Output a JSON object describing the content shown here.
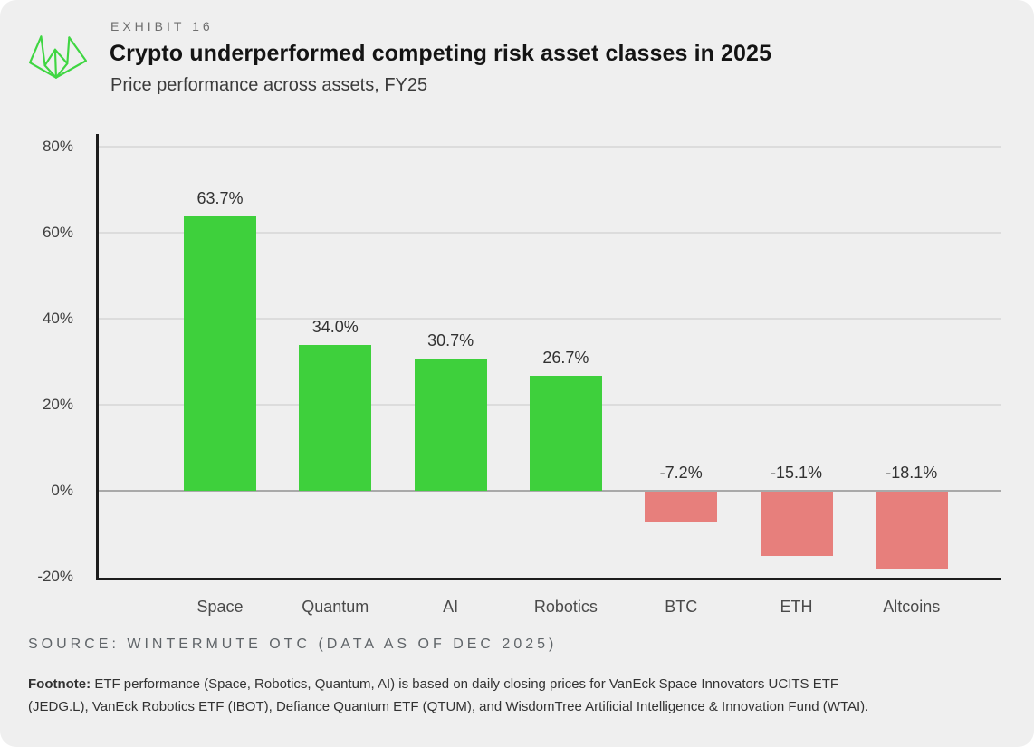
{
  "header": {
    "exhibit": "EXHIBIT 16",
    "title": "Crypto underperformed competing risk asset classes in 2025",
    "subtitle": "Price performance across assets, FY25"
  },
  "logo": {
    "name": "wintermute-logo",
    "color": "#3fd642"
  },
  "chart_data": {
    "type": "bar",
    "categories": [
      "Space",
      "Quantum",
      "AI",
      "Robotics",
      "BTC",
      "ETH",
      "Altcoins"
    ],
    "values": [
      63.7,
      34.0,
      30.7,
      26.7,
      -7.2,
      -15.1,
      -18.1
    ],
    "value_labels": [
      "63.7%",
      "34.0%",
      "30.7%",
      "26.7%",
      "-7.2%",
      "-15.1%",
      "-18.1%"
    ],
    "yticks": [
      80,
      60,
      40,
      20,
      0,
      -20
    ],
    "ytick_labels": [
      "80%",
      "60%",
      "40%",
      "20%",
      "0%",
      "-20%"
    ],
    "ylim": [
      -20,
      83
    ],
    "grid": true,
    "legend": "none",
    "positive_color": "#3ed03c",
    "negative_color": "#e77f7c",
    "title": "Crypto underperformed competing risk asset classes in 2025",
    "xlabel": "",
    "ylabel": ""
  },
  "source": {
    "text": "SOURCE: WINTERMUTE OTC (DATA AS OF DEC 2025)"
  },
  "footnote": {
    "label": "Footnote:",
    "lines": [
      "ETF performance (Space, Robotics, Quantum, AI) is based on daily closing prices for VanEck Space Innovators UCITS ETF",
      "(JEDG.L), VanEck Robotics ETF (IBOT), Defiance Quantum ETF (QTUM), and WisdomTree Artificial Intelligence & Innovation Fund (WTAI)."
    ]
  }
}
